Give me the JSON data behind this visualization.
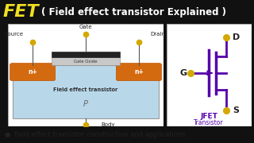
{
  "title_fet": "FET",
  "title_rest": "( Field effect transistor Explained )",
  "title_bg": "#111111",
  "title_fet_color": "#f0e020",
  "title_rest_color": "#ffffff",
  "bottom_text": "●  field effect transistor construction and applications",
  "bottom_bg": "#e8e8e8",
  "bottom_text_color": "#222222",
  "diagram_bg": "#f5f5f5",
  "p_region_color": "#b8d8ea",
  "gate_oxide_color": "#c8c8c8",
  "gate_metal_color": "#222222",
  "n_region_color": "#d46a10",
  "jfet_color": "#5500aa",
  "jfet_label_color": "#5500aa",
  "dot_color": "#d4a800",
  "wire_color": "#555555",
  "label_dark": "#222222",
  "label_medium": "#444444"
}
